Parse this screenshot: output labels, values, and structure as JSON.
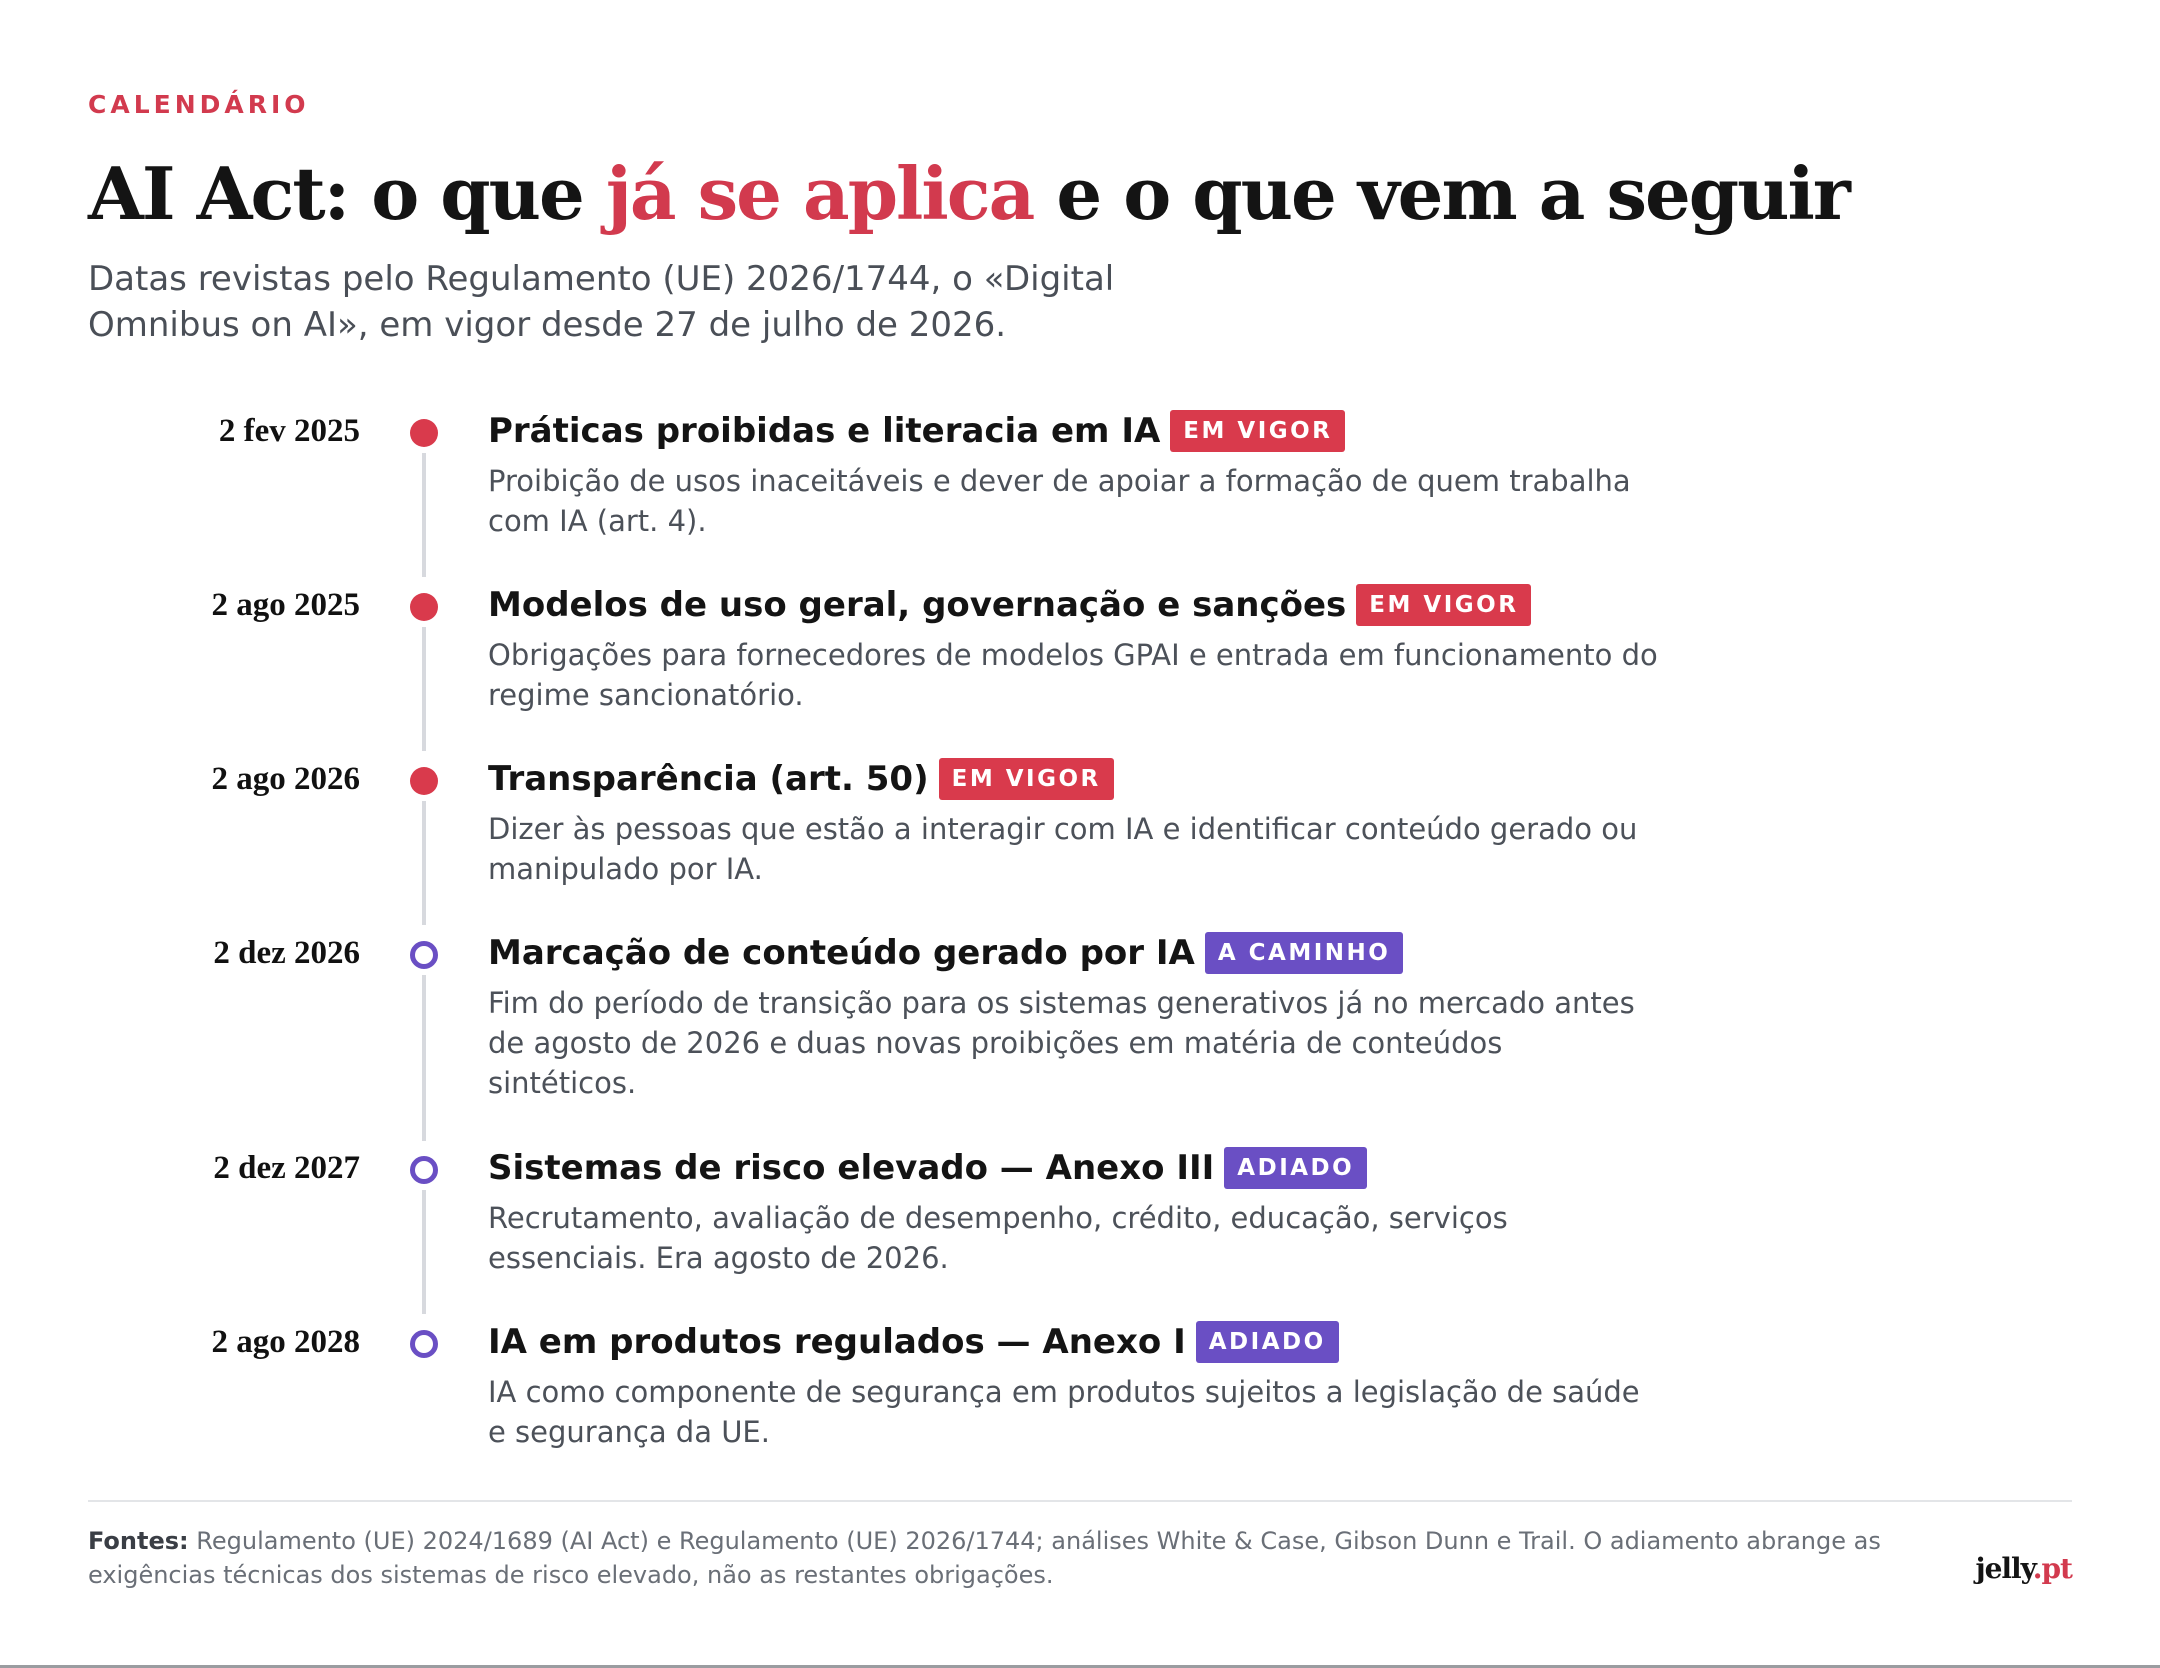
{
  "kicker": "CALENDÁRIO",
  "title": {
    "before": "AI Act: o que ",
    "accent": "já se aplica",
    "after": " e o que vem a seguir"
  },
  "subtitle": "Datas revistas pelo Regulamento (UE) 2026/1744, o «Digital Omnibus on AI», em vigor desde 27 de julho de 2026.",
  "colors": {
    "accent": "#d23a4e",
    "in_force": "#d93a4c",
    "upcoming": "#6a4fc4"
  },
  "timeline": [
    {
      "date": "2 fev 2025",
      "title": "Práticas proibidas e literacia em IA",
      "badge": "EM VIGOR",
      "status": "in-force",
      "description": "Proibição de usos inaceitáveis e dever de apoiar a formação de quem trabalha com IA (art. 4)."
    },
    {
      "date": "2 ago 2025",
      "title": "Modelos de uso geral, governação e sanções",
      "badge": "EM VIGOR",
      "status": "in-force",
      "description": "Obrigações para fornecedores de modelos GPAI e entrada em funcionamento do regime sancionatório."
    },
    {
      "date": "2 ago 2026",
      "title": "Transparência (art. 50)",
      "badge": "EM VIGOR",
      "status": "in-force",
      "description": "Dizer às pessoas que estão a interagir com IA e identificar conteúdo gerado ou manipulado por IA."
    },
    {
      "date": "2 dez 2026",
      "title": "Marcação de conteúdo gerado por IA",
      "badge": "A CAMINHO",
      "status": "upcoming",
      "description": "Fim do período de transição para os sistemas generativos já no mercado antes de agosto de 2026 e duas novas proibições em matéria de conteúdos sintéticos."
    },
    {
      "date": "2 dez 2027",
      "title": "Sistemas de risco elevado — Anexo III",
      "badge": "ADIADO",
      "status": "postponed",
      "description": "Recrutamento, avaliação de desempenho, crédito, educação, serviços essenciais. Era agosto de 2026."
    },
    {
      "date": "2 ago 2028",
      "title": "IA em produtos regulados — Anexo I",
      "badge": "ADIADO",
      "status": "postponed",
      "description": "IA como componente de segurança em produtos sujeitos a legislação de saúde e segurança da UE."
    }
  ],
  "footer": {
    "label": "Fontes:",
    "text": " Regulamento (UE) 2024/1689 (AI Act) e Regulamento (UE) 2026/1744; análises White & Case, Gibson Dunn e Trail. O adiamento abrange as exigências técnicas dos sistemas de risco elevado, não as restantes obrigações."
  },
  "logo": {
    "name": "jelly",
    "tld": ".pt"
  }
}
